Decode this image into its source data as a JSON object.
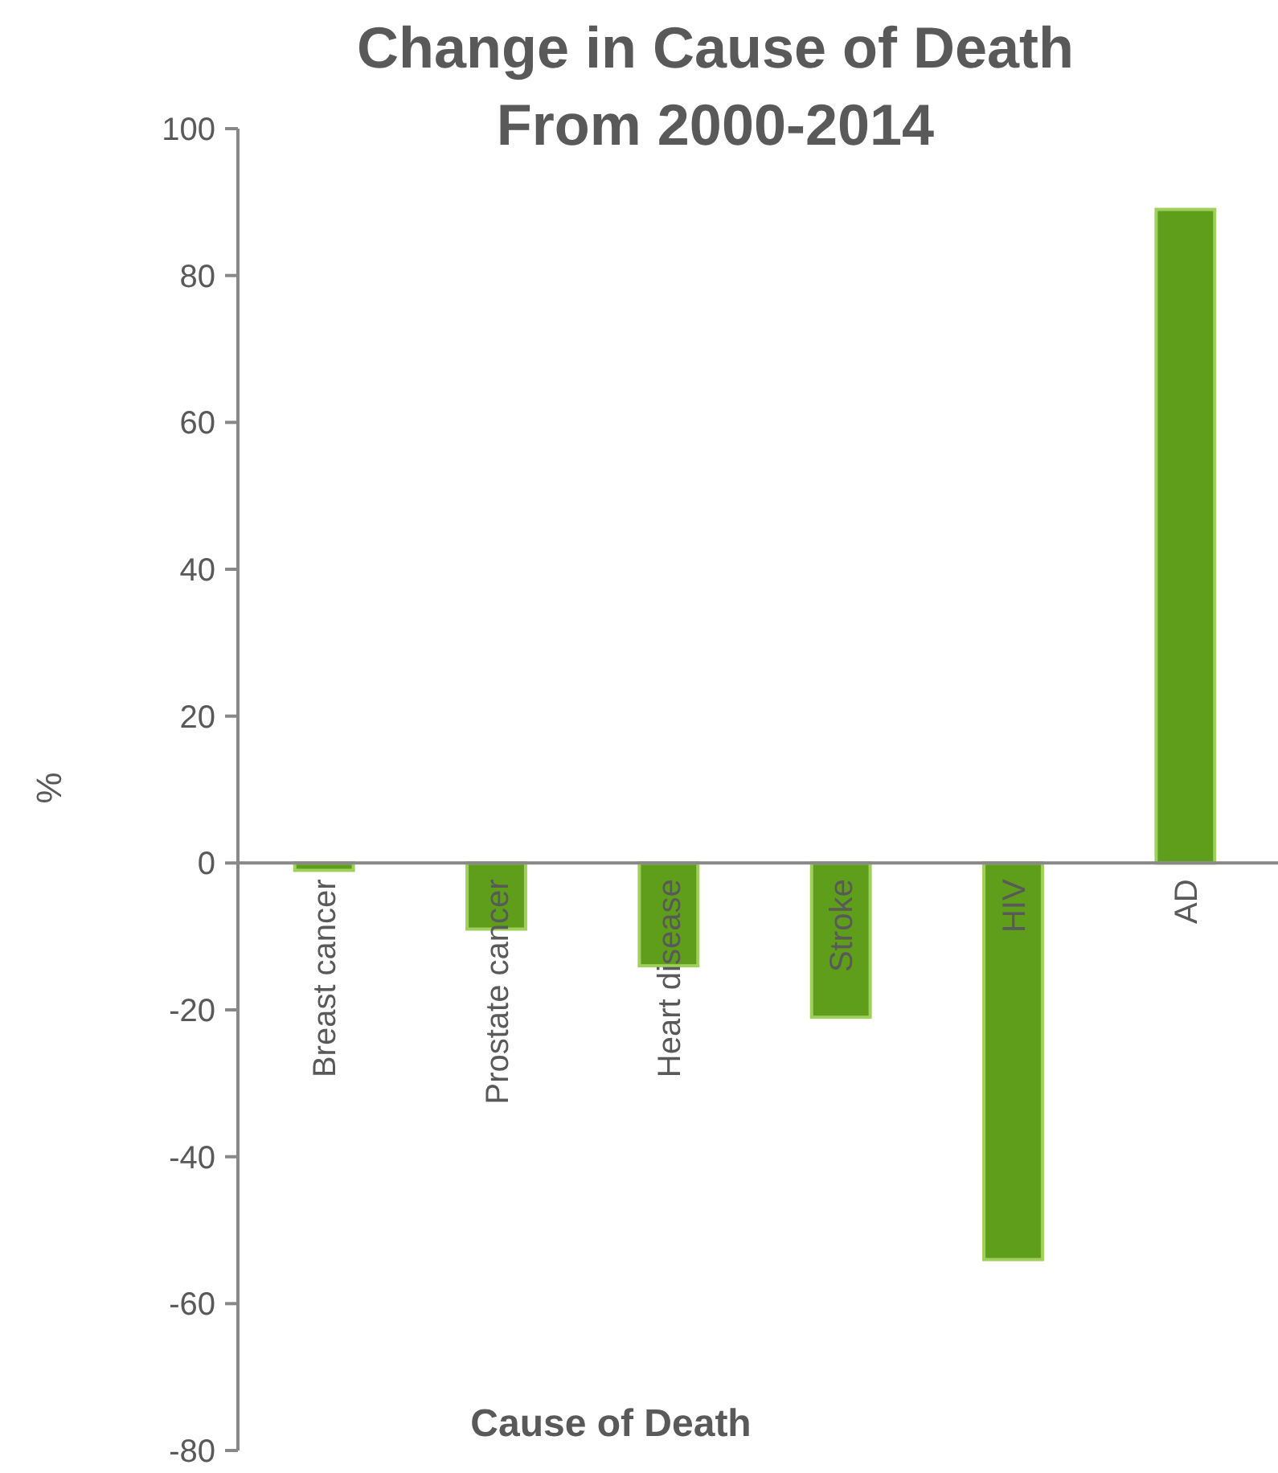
{
  "chart_data": {
    "type": "bar",
    "title": "Change in Cause of Death\nFrom 2000-2014",
    "xlabel": "Cause of Death",
    "ylabel": "%",
    "categories": [
      "Breast cancer",
      "Prostate cancer",
      "Heart disease",
      "Stroke",
      "HIV",
      "AD"
    ],
    "values": [
      -1,
      -9,
      -14,
      -21,
      -54,
      89
    ],
    "color": "#5f9e1b",
    "ylim": [
      -80,
      100
    ],
    "yticks": [
      -80,
      -60,
      -40,
      -20,
      0,
      20,
      40,
      60,
      80,
      100
    ],
    "grid": false
  }
}
